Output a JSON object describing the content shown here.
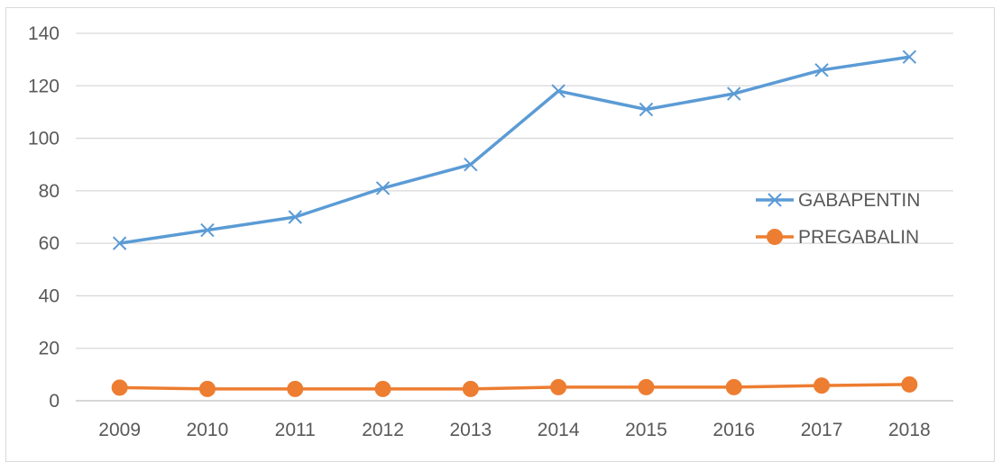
{
  "chart_data": {
    "type": "line",
    "categories": [
      "2009",
      "2010",
      "2011",
      "2012",
      "2013",
      "2014",
      "2015",
      "2016",
      "2017",
      "2018"
    ],
    "series": [
      {
        "name": "GABAPENTIN",
        "color": "#5b9bd5",
        "marker": "x",
        "values": [
          60,
          65,
          70,
          81,
          90,
          118,
          111,
          117,
          126,
          131
        ]
      },
      {
        "name": "PREGABALIN",
        "color": "#ed7d31",
        "marker": "circle",
        "values": [
          5,
          4.5,
          4.5,
          4.5,
          4.5,
          5.2,
          5.2,
          5.2,
          5.8,
          6.2
        ]
      }
    ],
    "ylim": [
      0,
      140
    ],
    "yticks": [
      "0",
      "20",
      "40",
      "60",
      "80",
      "100",
      "120",
      "140"
    ],
    "grid": true,
    "legend_position": "right"
  }
}
